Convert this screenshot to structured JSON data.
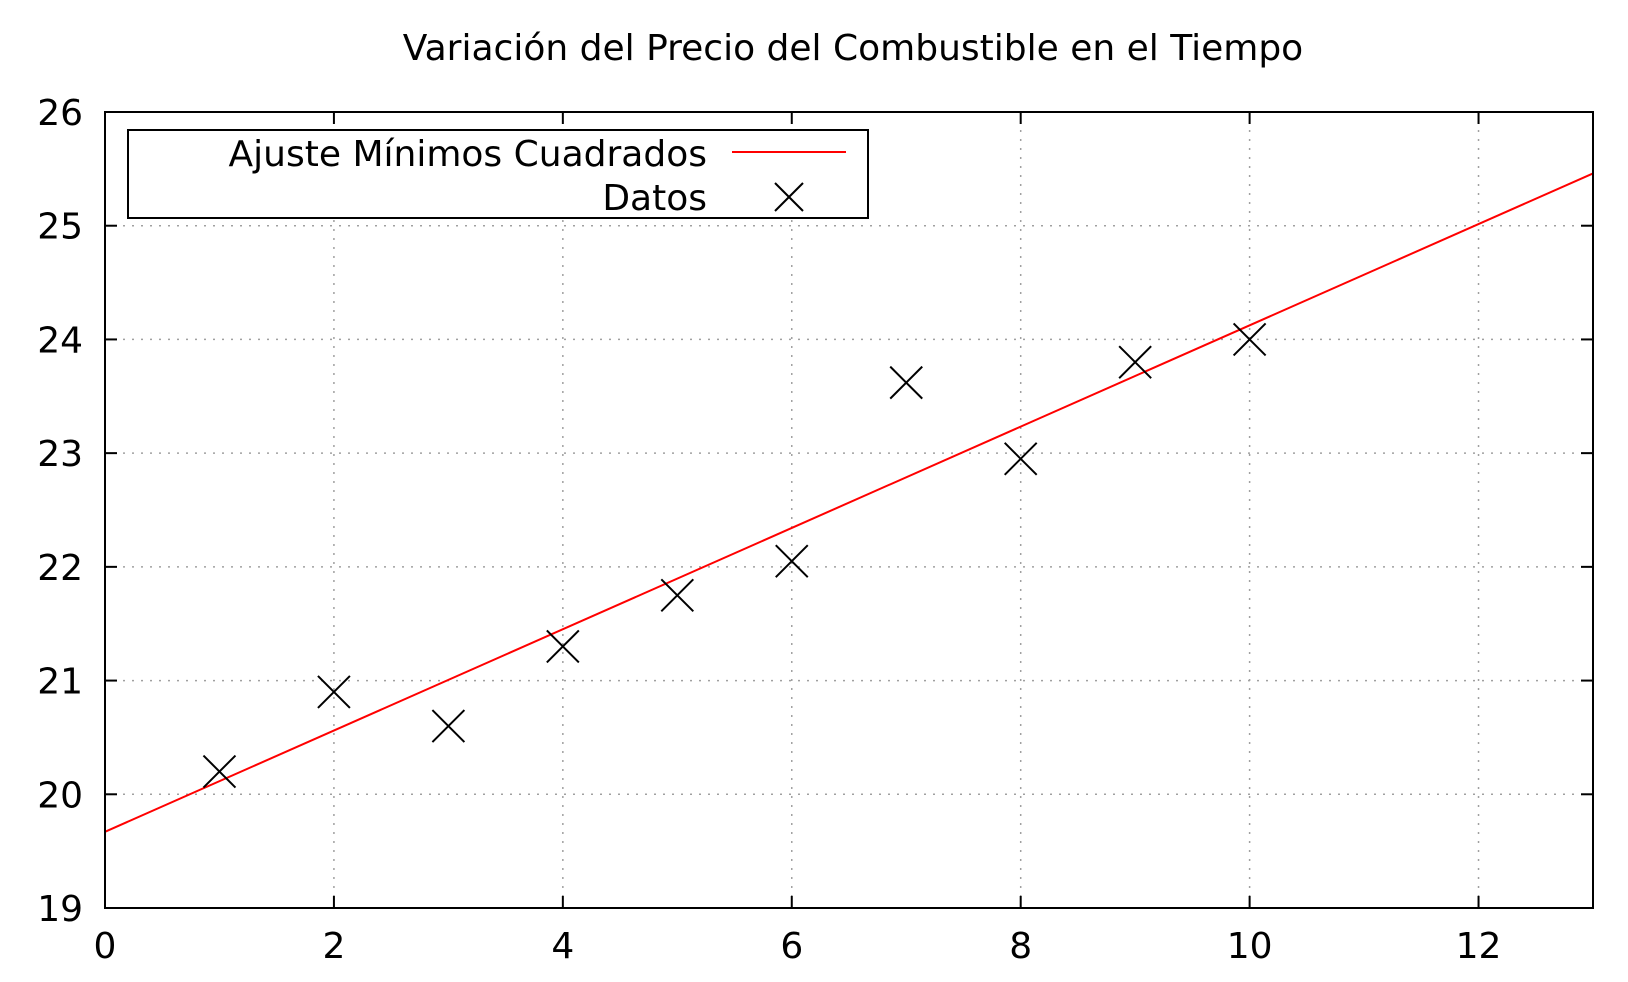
{
  "chart_data": {
    "type": "scatter",
    "title": "Variación del Precio del Combustible en el Tiempo",
    "xlabel": "",
    "ylabel": "",
    "xlim": [
      0,
      13
    ],
    "ylim": [
      19,
      26
    ],
    "x_ticks": [
      0,
      2,
      4,
      6,
      8,
      10,
      12
    ],
    "y_ticks": [
      19,
      20,
      21,
      22,
      23,
      24,
      25,
      26
    ],
    "grid": true,
    "legend_position": "top-left",
    "series": [
      {
        "name": "Ajuste Mínimos Cuadrados",
        "kind": "line",
        "color": "#ff0000",
        "x": [
          0,
          13
        ],
        "y": [
          19.67,
          25.46
        ]
      },
      {
        "name": "Datos",
        "kind": "points",
        "marker": "x",
        "color": "#000000",
        "x": [
          1,
          2,
          3,
          4,
          5,
          6,
          7,
          8,
          9,
          10
        ],
        "y": [
          20.2,
          20.9,
          20.6,
          21.3,
          21.75,
          22.05,
          23.62,
          22.95,
          23.8,
          24.0
        ]
      }
    ]
  }
}
